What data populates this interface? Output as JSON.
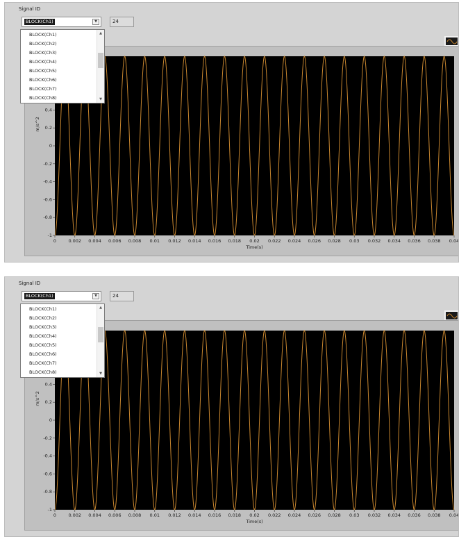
{
  "panels": [
    {
      "signal_label": "Signal ID",
      "selected": "BLOCK(Ch1)",
      "count": "24",
      "dropdown_items": [
        "BLOCK(Ch1)",
        "BLOCK(Ch2)",
        "BLOCK(Ch3)",
        "BLOCK(Ch4)",
        "BLOCK(Ch5)",
        "BLOCK(Ch6)",
        "BLOCK(Ch7)",
        "BLOCK(Ch8)"
      ]
    },
    {
      "signal_label": "Signal ID",
      "selected": "BLOCK(Ch1)",
      "count": "24",
      "dropdown_items": [
        "BLOCK(Ch1)",
        "BLOCK(Ch2)",
        "BLOCK(Ch3)",
        "BLOCK(Ch4)",
        "BLOCK(Ch5)",
        "BLOCK(Ch6)",
        "BLOCK(Ch7)",
        "BLOCK(Ch8)"
      ]
    }
  ],
  "chart_data": {
    "type": "line",
    "xlabel": "Time(s)",
    "ylabel": "m/s^2",
    "xlim": [
      0,
      0.04
    ],
    "ylim": [
      -1,
      1
    ],
    "x_ticks": [
      "0",
      "0.002",
      "0.004",
      "0.006",
      "0.008",
      "0.01",
      "0.012",
      "0.014",
      "0.016",
      "0.018",
      "0.02",
      "0.022",
      "0.024",
      "0.026",
      "0.028",
      "0.03",
      "0.032",
      "0.034",
      "0.036",
      "0.038",
      "0.04"
    ],
    "y_ticks": [
      "0.4",
      "0.2",
      "0",
      "-0.2",
      "-0.4",
      "-0.6",
      "-0.8",
      "-1"
    ],
    "series": [
      {
        "frequency_hz": 500,
        "amplitude": 1,
        "phase_deg": -90,
        "color": "#c9872f"
      }
    ],
    "background": "#000000",
    "grid": false
  }
}
